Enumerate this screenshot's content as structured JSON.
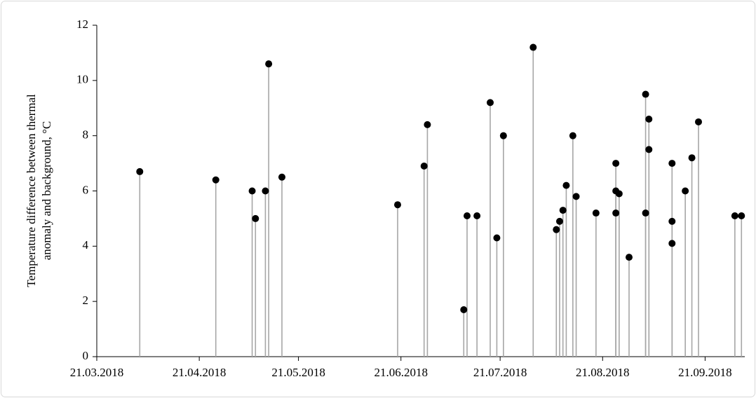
{
  "chart_data": {
    "type": "stem",
    "ylabel": [
      "Temperature difference between thermal",
      "anomaly and background, °C"
    ],
    "x": [
      "2018-04-03",
      "2018-04-26",
      "2018-05-07",
      "2018-05-08",
      "2018-05-11",
      "2018-05-12",
      "2018-05-16",
      "2018-06-20",
      "2018-06-28",
      "2018-06-29",
      "2018-07-10",
      "2018-07-11",
      "2018-07-14",
      "2018-07-18",
      "2018-07-20",
      "2018-07-22",
      "2018-07-31",
      "2018-08-07",
      "2018-08-08",
      "2018-08-09",
      "2018-08-10",
      "2018-08-12",
      "2018-08-13",
      "2018-08-19",
      "2018-08-25",
      "2018-08-25",
      "2018-08-25",
      "2018-08-26",
      "2018-08-29",
      "2018-09-03",
      "2018-09-03",
      "2018-09-04",
      "2018-09-04",
      "2018-09-11",
      "2018-09-11",
      "2018-09-11",
      "2018-09-15",
      "2018-09-17",
      "2018-09-19",
      "2018-09-30",
      "2018-10-02"
    ],
    "values": [
      6.7,
      6.4,
      6.0,
      5.0,
      6.0,
      10.6,
      6.5,
      5.5,
      6.9,
      8.4,
      1.7,
      5.1,
      5.1,
      9.2,
      4.3,
      8.0,
      11.2,
      4.6,
      4.9,
      5.3,
      6.2,
      8.0,
      5.8,
      5.2,
      7.0,
      6.0,
      5.2,
      5.9,
      3.6,
      9.5,
      5.2,
      8.6,
      7.5,
      7.0,
      4.9,
      4.1,
      6.0,
      7.2,
      8.5,
      5.1,
      5.1
    ],
    "color": "#000000",
    "stem_color": "#a6a6a6",
    "xlim": [
      "2018-03-21",
      "2018-10-03"
    ],
    "xticks": [
      {
        "value": "2018-03-21",
        "label": "21.03.2018"
      },
      {
        "value": "2018-04-21",
        "label": "21.04.2018"
      },
      {
        "value": "2018-05-21",
        "label": "21.05.2018"
      },
      {
        "value": "2018-06-21",
        "label": "21.06.2018"
      },
      {
        "value": "2018-07-21",
        "label": "21.07.2018"
      },
      {
        "value": "2018-08-21",
        "label": "21.08.2018"
      },
      {
        "value": "2018-09-21",
        "label": "21.09.2018"
      }
    ],
    "ylim": [
      0,
      12
    ],
    "yticks": [
      0,
      2,
      4,
      6,
      8,
      10,
      12
    ],
    "grid": false
  }
}
